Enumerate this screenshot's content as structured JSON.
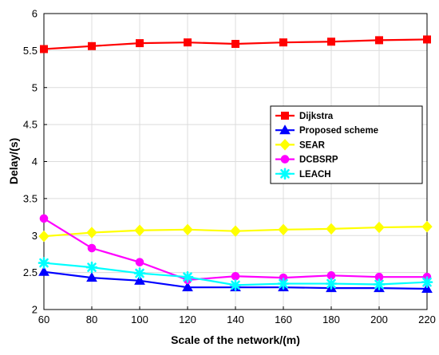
{
  "chart_data": {
    "type": "line",
    "title": "",
    "xlabel": "Scale of the network/(m)",
    "ylabel": "Delay/(s)",
    "x": [
      60,
      80,
      100,
      120,
      140,
      160,
      180,
      200,
      220
    ],
    "xlim": [
      60,
      220
    ],
    "ylim": [
      2,
      6
    ],
    "xticks": [
      "60",
      "80",
      "100",
      "120",
      "140",
      "160",
      "180",
      "200",
      "220"
    ],
    "yticks": [
      "2",
      "2.5",
      "3",
      "3.5",
      "4",
      "4.5",
      "5",
      "5.5",
      "6"
    ],
    "grid": true,
    "legend_position": "right",
    "series": [
      {
        "name": "Dijkstra",
        "color": "#ff0000",
        "marker": "square",
        "values": [
          5.52,
          5.56,
          5.6,
          5.61,
          5.59,
          5.61,
          5.62,
          5.64,
          5.65
        ]
      },
      {
        "name": "Proposed scheme",
        "color": "#0000ff",
        "marker": "triangle",
        "values": [
          2.51,
          2.43,
          2.39,
          2.3,
          2.3,
          2.3,
          2.29,
          2.29,
          2.28
        ]
      },
      {
        "name": "SEAR",
        "color": "#ffff00",
        "marker": "diamond",
        "values": [
          2.99,
          3.04,
          3.07,
          3.08,
          3.06,
          3.08,
          3.09,
          3.11,
          3.12
        ]
      },
      {
        "name": "DCBSRP",
        "color": "#ff00ff",
        "marker": "circle",
        "values": [
          3.23,
          2.83,
          2.64,
          2.4,
          2.45,
          2.43,
          2.46,
          2.44,
          2.44
        ]
      },
      {
        "name": "LEACH",
        "color": "#00ffff",
        "marker": "star",
        "values": [
          2.63,
          2.57,
          2.49,
          2.44,
          2.33,
          2.35,
          2.35,
          2.34,
          2.37
        ]
      }
    ]
  }
}
